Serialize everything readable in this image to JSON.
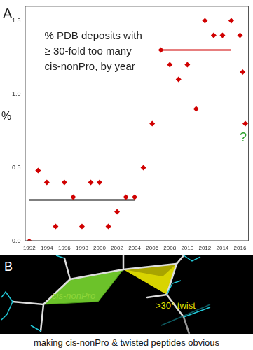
{
  "chart_data": {
    "type": "scatter",
    "panel_label": "A",
    "title": [
      "% PDB deposits with",
      "≥ 30-fold too many",
      "cis-nonPro, by year"
    ],
    "ylabel": "%",
    "annotation": {
      "text": "?",
      "color": "#2ca02c"
    },
    "series": [
      {
        "type": "scatter",
        "marker": "diamond",
        "color": "#d00000",
        "x": [
          1992,
          1993,
          1994,
          1995,
          1996,
          1997,
          1998,
          1999,
          2000,
          2001,
          2002,
          2003,
          2004,
          2005,
          2006,
          2007,
          2008,
          2009,
          2010,
          2011,
          2012,
          2013,
          2014,
          2015,
          2016,
          2016.3,
          2016.6
        ],
        "values": [
          0.0,
          0.48,
          0.4,
          0.1,
          0.4,
          0.3,
          0.1,
          0.4,
          0.4,
          0.1,
          0.2,
          0.3,
          0.3,
          0.5,
          0.8,
          1.3,
          1.2,
          1.1,
          1.2,
          0.9,
          1.5,
          1.4,
          1.4,
          1.5,
          1.4,
          1.15,
          0.8
        ]
      },
      {
        "type": "line",
        "color": "#000000",
        "line_style": "solid",
        "x": [
          1992,
          2004
        ],
        "values": [
          0.28,
          0.28
        ]
      },
      {
        "type": "line",
        "color": "#d00000",
        "line_style": "solid",
        "x": [
          2007,
          2015
        ],
        "values": [
          1.3,
          1.3
        ]
      }
    ],
    "xlim": [
      1991.5,
      2017
    ],
    "xticks": [
      1992,
      1994,
      1996,
      1998,
      2000,
      2002,
      2004,
      2006,
      2008,
      2010,
      2012,
      2014,
      2016
    ],
    "ylim": [
      0,
      1.6
    ],
    "yticks": [
      {
        "value": 0,
        "label": "0.0"
      },
      {
        "value": 0.5,
        "label": "0.5"
      },
      {
        "value": 1,
        "label": "1.0"
      },
      {
        "value": 1.5,
        "label": "1.5"
      }
    ],
    "grid": false
  },
  "diagram": {
    "label": "B",
    "labels": [
      {
        "text": "cis-nonPro",
        "color": "#8fd63a"
      },
      {
        "text": ">30° twist",
        "color": "#e8e000"
      }
    ],
    "caption": "making cis-nonPro & twisted peptides obvious"
  }
}
